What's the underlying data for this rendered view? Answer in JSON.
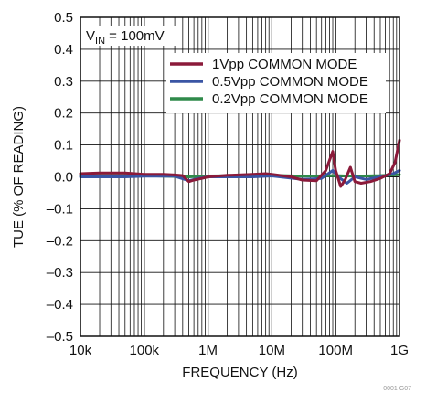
{
  "chart_data": {
    "type": "line",
    "title": "",
    "xlabel": "FREQUENCY (Hz)",
    "ylabel": "TUE (% OF READING)",
    "x_scale": "log",
    "xlim": [
      10000,
      1000000000
    ],
    "ylim": [
      -0.5,
      0.5
    ],
    "grid": true,
    "x_ticks": [
      {
        "value": 10000,
        "label": "10k"
      },
      {
        "value": 100000,
        "label": "100k"
      },
      {
        "value": 1000000,
        "label": "1M"
      },
      {
        "value": 10000000,
        "label": "10M"
      },
      {
        "value": 100000000,
        "label": "100M"
      },
      {
        "value": 1000000000,
        "label": "1G"
      }
    ],
    "y_ticks": [
      {
        "value": 0.5,
        "label": "0.5"
      },
      {
        "value": 0.4,
        "label": "0.4"
      },
      {
        "value": 0.3,
        "label": "0.3"
      },
      {
        "value": 0.2,
        "label": "0.2"
      },
      {
        "value": 0.1,
        "label": "0.1"
      },
      {
        "value": 0.0,
        "label": "0.0"
      },
      {
        "value": -0.1,
        "label": "–0.1"
      },
      {
        "value": -0.2,
        "label": "–0.2"
      },
      {
        "value": -0.3,
        "label": "–0.3"
      },
      {
        "value": -0.4,
        "label": "–0.4"
      },
      {
        "value": -0.5,
        "label": "–0.5"
      }
    ],
    "annotation": {
      "prefix": "V",
      "subscript": "IN",
      "suffix": " = 100mV"
    },
    "legend_position": "top-right",
    "series": [
      {
        "name": "1Vpp COMMON MODE",
        "color": "#8b1a3a",
        "points": [
          [
            10000,
            0.01
          ],
          [
            20000,
            0.012
          ],
          [
            50000,
            0.012
          ],
          [
            100000,
            0.008
          ],
          [
            200000,
            0.008
          ],
          [
            300000,
            0.006
          ],
          [
            400000,
            0.004
          ],
          [
            500000,
            -0.015
          ],
          [
            600000,
            -0.01
          ],
          [
            800000,
            -0.005
          ],
          [
            1000000,
            0.0
          ],
          [
            2000000,
            0.005
          ],
          [
            3000000,
            0.006
          ],
          [
            5000000,
            0.008
          ],
          [
            8000000,
            0.01
          ],
          [
            10000000,
            0.008
          ],
          [
            20000000,
            0.0
          ],
          [
            30000000,
            -0.01
          ],
          [
            50000000,
            -0.012
          ],
          [
            70000000,
            0.02
          ],
          [
            90000000,
            0.08
          ],
          [
            100000000,
            0.02
          ],
          [
            120000000,
            -0.03
          ],
          [
            140000000,
            -0.01
          ],
          [
            170000000,
            0.03
          ],
          [
            200000000,
            -0.015
          ],
          [
            250000000,
            -0.02
          ],
          [
            350000000,
            -0.015
          ],
          [
            500000000,
            -0.005
          ],
          [
            700000000,
            0.01
          ],
          [
            850000000,
            0.045
          ],
          [
            1000000000,
            0.115
          ]
        ]
      },
      {
        "name": "0.5Vpp COMMON MODE",
        "color": "#3a55a4",
        "points": [
          [
            10000,
            0.0
          ],
          [
            50000,
            0.0
          ],
          [
            100000,
            0.002
          ],
          [
            300000,
            0.002
          ],
          [
            500000,
            -0.012
          ],
          [
            700000,
            -0.005
          ],
          [
            1000000,
            0.0
          ],
          [
            5000000,
            0.0
          ],
          [
            10000000,
            0.003
          ],
          [
            30000000,
            -0.008
          ],
          [
            60000000,
            -0.005
          ],
          [
            90000000,
            0.02
          ],
          [
            110000000,
            0.0
          ],
          [
            150000000,
            -0.02
          ],
          [
            200000000,
            0.0
          ],
          [
            300000000,
            -0.008
          ],
          [
            500000000,
            0.0
          ],
          [
            800000000,
            0.01
          ],
          [
            1000000000,
            0.02
          ]
        ]
      },
      {
        "name": "0.2Vpp COMMON MODE",
        "color": "#2f8a4a",
        "points": [
          [
            10000,
            0.004
          ],
          [
            100000,
            0.004
          ],
          [
            500000,
            0.0
          ],
          [
            1000000,
            0.003
          ],
          [
            10000000,
            0.005
          ],
          [
            30000000,
            0.002
          ],
          [
            100000000,
            0.004
          ],
          [
            200000000,
            0.002
          ],
          [
            500000000,
            0.004
          ],
          [
            1000000000,
            0.007
          ]
        ]
      }
    ]
  },
  "footer_code": "0001 G07"
}
